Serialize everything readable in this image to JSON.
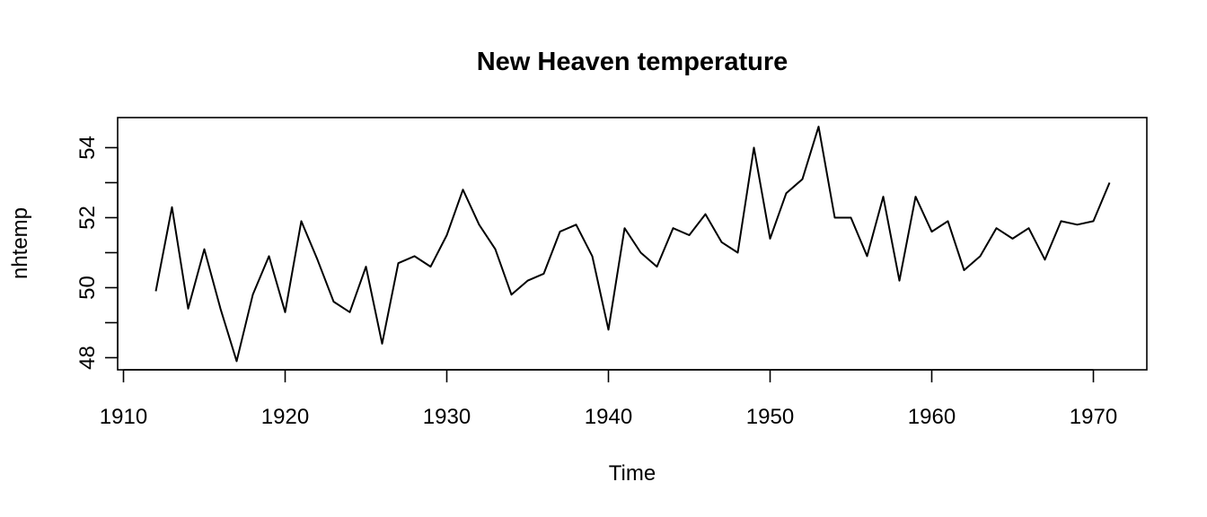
{
  "chart_data": {
    "type": "line",
    "title": "New Heaven temperature",
    "xlabel": "Time",
    "ylabel": "nhtemp",
    "xlim": [
      1912,
      1971
    ],
    "ylim": [
      47.9,
      54.6
    ],
    "xticks": [
      1910,
      1920,
      1930,
      1940,
      1950,
      1960,
      1970
    ],
    "yticks": [
      48,
      50,
      52,
      54
    ],
    "yticks_minor": [
      49,
      51,
      53
    ],
    "grid": false,
    "legend": "none",
    "series": [
      {
        "x": [
          1912,
          1913,
          1914,
          1915,
          1916,
          1917,
          1918,
          1919,
          1920,
          1921,
          1922,
          1923,
          1924,
          1925,
          1926,
          1927,
          1928,
          1929,
          1930,
          1931,
          1932,
          1933,
          1934,
          1935,
          1936,
          1937,
          1938,
          1939,
          1940,
          1941,
          1942,
          1943,
          1944,
          1945,
          1946,
          1947,
          1948,
          1949,
          1950,
          1951,
          1952,
          1953,
          1954,
          1955,
          1956,
          1957,
          1958,
          1959,
          1960,
          1961,
          1962,
          1963,
          1964,
          1965,
          1966,
          1967,
          1968,
          1969,
          1970,
          1971
        ],
        "values": [
          49.9,
          52.3,
          49.4,
          51.1,
          49.4,
          47.9,
          49.8,
          50.9,
          49.3,
          51.9,
          50.8,
          49.6,
          49.3,
          50.6,
          48.4,
          50.7,
          50.9,
          50.6,
          51.5,
          52.8,
          51.8,
          51.1,
          49.8,
          50.2,
          50.4,
          51.6,
          51.8,
          50.9,
          48.8,
          51.7,
          51.0,
          50.6,
          51.7,
          51.5,
          52.1,
          51.3,
          51.0,
          54.0,
          51.4,
          52.7,
          53.1,
          54.6,
          52.0,
          52.0,
          50.9,
          52.6,
          50.2,
          52.6,
          51.6,
          51.9,
          50.5,
          50.9,
          51.7,
          51.4,
          51.7,
          50.8,
          51.9,
          51.8,
          51.9,
          53.0
        ]
      }
    ]
  }
}
